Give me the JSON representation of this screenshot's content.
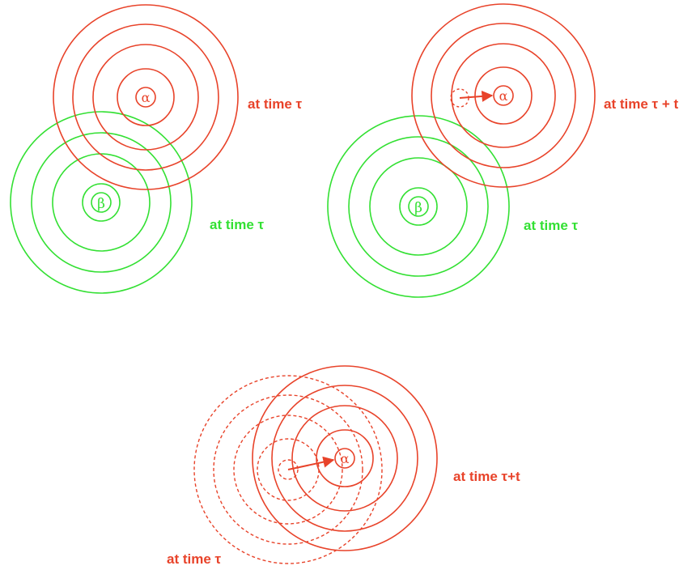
{
  "colors": {
    "red": "#e8432a",
    "green": "#33e033"
  },
  "panels": {
    "top_left": {
      "alpha_symbol": "α",
      "beta_symbol": "β",
      "red_label": "at time τ",
      "green_label": "at time τ"
    },
    "top_right": {
      "alpha_symbol": "α",
      "beta_symbol": "β",
      "red_label": "at time τ + t",
      "green_label": "at time τ"
    },
    "bottom": {
      "alpha_symbol": "α",
      "solid_label": "at time τ+t",
      "dashed_label": "at time τ"
    }
  }
}
